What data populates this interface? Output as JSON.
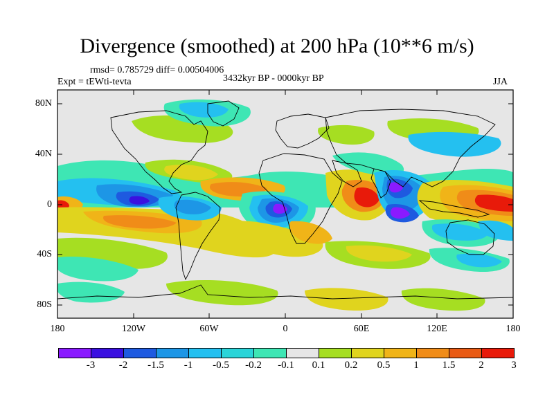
{
  "title": "Divergence (smoothed) at 200 hPa (10**6 m/s)",
  "stats": "rmsd= 0.785729 diff= 0.00504006",
  "experiment": "Expt = tEWti-tevta",
  "period": "3432kyr BP - 0000kyr BP",
  "season": "JJA",
  "y_ticks": [
    "80N",
    "40N",
    "0",
    "40S",
    "80S"
  ],
  "x_ticks": [
    "180",
    "120W",
    "60W",
    "0",
    "60E",
    "120E",
    "180"
  ],
  "colorbar": {
    "labels": [
      "-3",
      "-2",
      "-1.5",
      "-1",
      "-0.5",
      "-0.2",
      "-0.1",
      "0.1",
      "0.2",
      "0.5",
      "1",
      "1.5",
      "2",
      "3"
    ],
    "colors": [
      "#8a1aff",
      "#3a10e0",
      "#1e5ae0",
      "#1d96e6",
      "#24c0f0",
      "#2ad4d8",
      "#3ee6b4",
      "#e6e6e6",
      "#a6de22",
      "#e0d41e",
      "#f0b418",
      "#f08c18",
      "#e85a14",
      "#e81a0a"
    ]
  },
  "fill_colors": {
    "neutral": "#e6e6e6",
    "pos_weak": "#a6de22",
    "pos_mid": "#e0d41e",
    "pos_strong": "#f0b418",
    "pos_high": "#f08c18",
    "pos_max": "#e81a0a",
    "neg_weak": "#3ee6b4",
    "neg_mid": "#24c0f0",
    "neg_strong": "#1d96e6",
    "neg_high": "#1e5ae0",
    "neg_max": "#3a10e0",
    "neg_extreme": "#8a1aff"
  }
}
